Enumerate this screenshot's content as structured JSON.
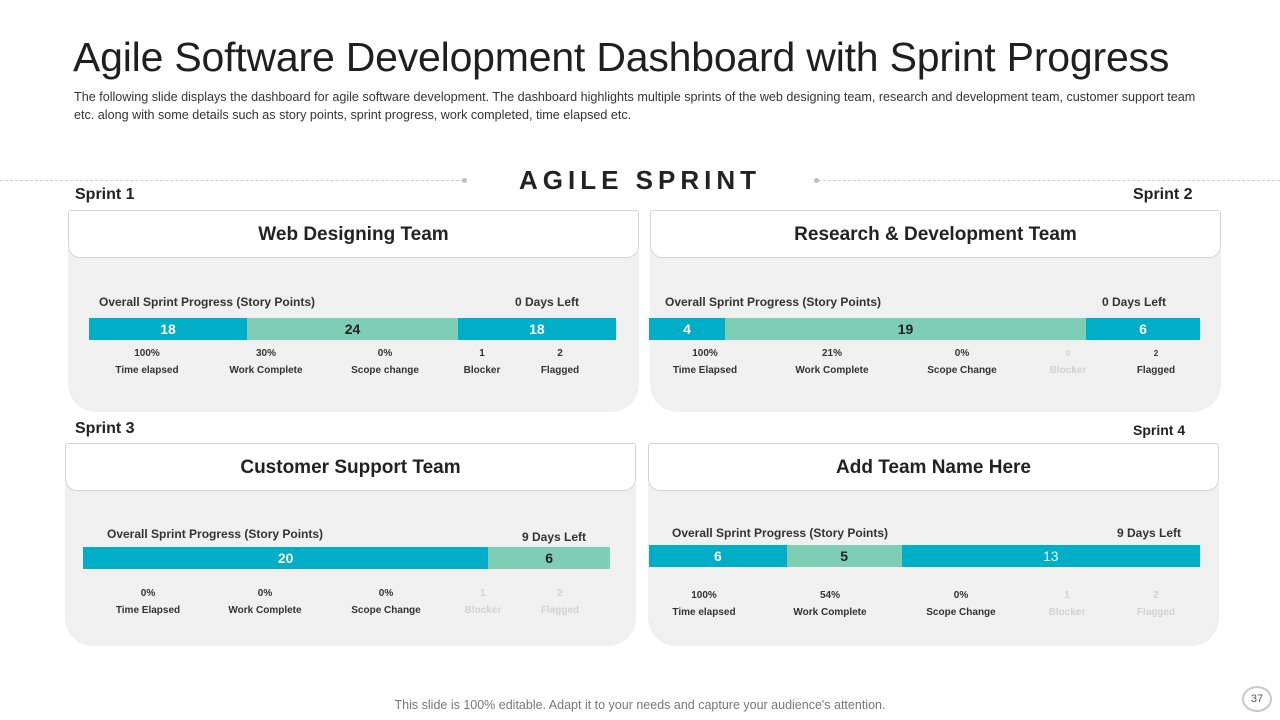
{
  "header": {
    "title": "Agile Software Development Dashboard with Sprint Progress",
    "subtitle": "The following slide displays the dashboard for agile software development. The dashboard highlights multiple sprints of the web designing team, research and development team, customer support team etc. along with some details such as story points, sprint progress, work completed, time elapsed etc."
  },
  "section_heading": "AGILE SPRINT",
  "sprints": [
    {
      "sprint_label": "Sprint 1",
      "team": "Web Designing Team",
      "progress_label": "Overall Sprint Progress (Story Points)",
      "days_left": "0 Days Left",
      "segments": [
        {
          "label": "18",
          "value": 18,
          "color": "blue"
        },
        {
          "label": "24",
          "value": 24,
          "color": "green"
        },
        {
          "label": "18",
          "value": 18,
          "color": "blue"
        }
      ],
      "stats": [
        {
          "value": "100%",
          "label": "Time elapsed"
        },
        {
          "value": "30%",
          "label": "Work Complete"
        },
        {
          "value": "0%",
          "label": "Scope change"
        },
        {
          "value": "1",
          "label": "Blocker"
        },
        {
          "value": "2",
          "label": "Flagged"
        }
      ]
    },
    {
      "sprint_label": "Sprint 2",
      "team": "Research & Development Team",
      "progress_label": "Overall Sprint Progress (Story Points)",
      "days_left": "0 Days Left",
      "segments": [
        {
          "label": "4",
          "value": 4,
          "color": "blue"
        },
        {
          "label": "19",
          "value": 19,
          "color": "green"
        },
        {
          "label": "6",
          "value": 6,
          "color": "blue"
        }
      ],
      "stats": [
        {
          "value": "100%",
          "label": "Time Elapsed"
        },
        {
          "value": "21%",
          "label": "Work Complete"
        },
        {
          "value": "0%",
          "label": "Scope Change"
        },
        {
          "value": "0",
          "label": "Blocker"
        },
        {
          "value": "2",
          "label": "Flagged"
        }
      ]
    },
    {
      "sprint_label": "Sprint 3",
      "team": "Customer Support Team",
      "progress_label": "Overall Sprint Progress (Story Points)",
      "days_left": "9 Days Left",
      "segments": [
        {
          "label": "20",
          "value": 20,
          "color": "blue"
        },
        {
          "label": "6",
          "value": 6,
          "color": "green"
        }
      ],
      "stats": [
        {
          "value": "0%",
          "label": "Time Elapsed"
        },
        {
          "value": "0%",
          "label": "Work Complete"
        },
        {
          "value": "0%",
          "label": "Scope Change"
        },
        {
          "value": "1",
          "label": "Blocker"
        },
        {
          "value": "2",
          "label": "Flagged"
        }
      ]
    },
    {
      "sprint_label": "Sprint 4",
      "team": "Add Team Name Here",
      "progress_label": "Overall Sprint Progress (Story Points)",
      "days_left": "9 Days Left",
      "segments": [
        {
          "label": "6",
          "value": 6,
          "color": "blue"
        },
        {
          "label": "5",
          "value": 5,
          "color": "green"
        },
        {
          "label": "13",
          "value": 13,
          "color": "blue"
        }
      ],
      "stats": [
        {
          "value": "100%",
          "label": "Time elapsed"
        },
        {
          "value": "54%",
          "label": "Work Complete"
        },
        {
          "value": "0%",
          "label": "Scope Change"
        },
        {
          "value": "1",
          "label": "Blocker"
        },
        {
          "value": "2",
          "label": "Flagged"
        }
      ]
    }
  ],
  "footer": {
    "note": "This slide is 100% editable. Adapt it to your needs and capture your audience's attention.",
    "page_number": "37"
  },
  "colors": {
    "blue": "#00aec7",
    "green": "#7ecdb5",
    "panel_bg": "#f0f0f0"
  }
}
